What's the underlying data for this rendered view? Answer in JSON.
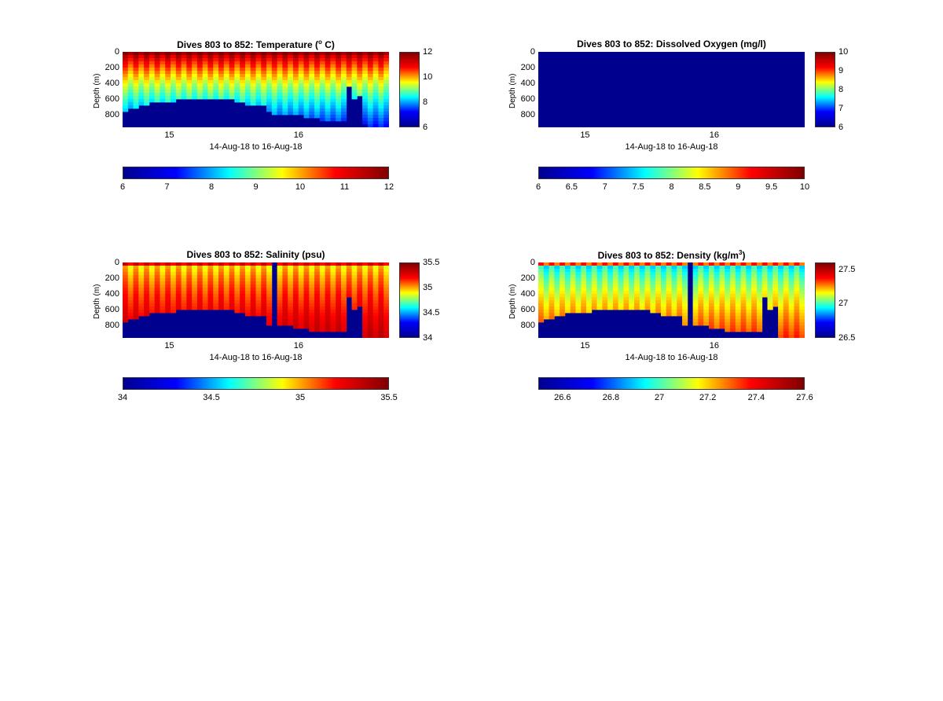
{
  "figure": {
    "colormap": [
      "#00008f",
      "#0000ff",
      "#00ffff",
      "#ffff00",
      "#ff0000",
      "#800000"
    ],
    "seafloor_color": "#00008f"
  },
  "chart_data": [
    {
      "type": "heatmap",
      "id": "temperature",
      "title": "Dives 803 to 852: Temperature (",
      "title_sup": "o",
      "title_tail": " C)",
      "ylabel": "Depth (m)",
      "xlabel": "14-Aug-18 to 16-Aug-18",
      "xticks": [
        "15",
        "16"
      ],
      "yticks": [
        "0",
        "200",
        "400",
        "600",
        "800"
      ],
      "ylim": [
        0,
        960
      ],
      "clim": [
        6,
        12
      ],
      "side_colorbar_ticks": [
        "12",
        "10",
        "8",
        "6"
      ],
      "bottom_colorbar_ticks": [
        "6",
        "7",
        "8",
        "9",
        "10",
        "11",
        "12"
      ],
      "n_dives": 50,
      "surface_value": 11.8,
      "deep_value": 7.2,
      "bottom_depths": [
        740,
        720,
        700,
        680,
        670,
        650,
        650,
        640,
        630,
        620,
        610,
        600,
        600,
        600,
        600,
        600,
        600,
        600,
        600,
        600,
        600,
        620,
        650,
        680,
        690,
        690,
        690,
        760,
        780,
        780,
        780,
        780,
        800,
        810,
        830,
        850,
        850,
        860,
        870,
        880,
        880,
        880,
        430,
        600,
        550,
        900,
        940,
        960,
        960,
        960
      ]
    },
    {
      "type": "heatmap",
      "id": "oxygen",
      "title": "Dives 803 to 852: Dissolved Oxygen (mg/l)",
      "title_sup": "",
      "title_tail": "",
      "ylabel": "Depth (m)",
      "xlabel": "14-Aug-18 to 16-Aug-18",
      "xticks": [
        "15",
        "16"
      ],
      "yticks": [
        "0",
        "200",
        "400",
        "600",
        "800"
      ],
      "ylim": [
        0,
        960
      ],
      "clim": [
        6,
        10
      ],
      "side_colorbar_ticks": [
        "10",
        "9",
        "8",
        "7",
        "6"
      ],
      "bottom_colorbar_ticks": [
        "6",
        "6.5",
        "7",
        "7.5",
        "8",
        "8.5",
        "9",
        "9.5",
        "10"
      ],
      "n_dives": 50,
      "surface_value": 6,
      "deep_value": 6,
      "bottom_depths": []
    },
    {
      "type": "heatmap",
      "id": "salinity",
      "title": "Dives 803 to 852: Salinity (psu)",
      "title_sup": "",
      "title_tail": "",
      "ylabel": "Depth (m)",
      "xlabel": "14-Aug-18 to 16-Aug-18",
      "xticks": [
        "15",
        "16"
      ],
      "yticks": [
        "0",
        "200",
        "400",
        "600",
        "800"
      ],
      "ylim": [
        0,
        960
      ],
      "clim": [
        34,
        35.5
      ],
      "side_colorbar_ticks": [
        "35.5",
        "35",
        "34.5",
        "34"
      ],
      "bottom_colorbar_ticks": [
        "34",
        "34.5",
        "35",
        "35.5"
      ],
      "n_dives": 50,
      "surface_value": 34.9,
      "deep_value": 35.35,
      "bottom_depths": [
        740,
        720,
        700,
        680,
        670,
        650,
        650,
        640,
        630,
        620,
        610,
        600,
        600,
        600,
        600,
        600,
        600,
        600,
        600,
        600,
        600,
        620,
        650,
        680,
        690,
        690,
        690,
        790,
        0,
        790,
        800,
        810,
        820,
        830,
        840,
        860,
        860,
        870,
        880,
        880,
        880,
        880,
        430,
        600,
        550,
        940,
        960,
        960,
        960,
        960
      ]
    },
    {
      "type": "heatmap",
      "id": "density",
      "title": "Dives 803 to 852: Density (kg/m",
      "title_sup": "3",
      "title_tail": ")",
      "ylabel": "Depth (m)",
      "xlabel": "14-Aug-18 to 16-Aug-18",
      "xticks": [
        "15",
        "16"
      ],
      "yticks": [
        "0",
        "200",
        "400",
        "600",
        "800"
      ],
      "ylim": [
        0,
        960
      ],
      "clim": [
        26.5,
        27.6
      ],
      "side_colorbar_ticks": [
        "27.5",
        "27",
        "26.5"
      ],
      "bottom_colorbar_ticks": [
        "26.6",
        "26.8",
        "27",
        "27.2",
        "27.4",
        "27.6"
      ],
      "n_dives": 50,
      "surface_value": 26.9,
      "deep_value": 27.35,
      "bottom_depths": [
        740,
        720,
        700,
        680,
        670,
        650,
        650,
        640,
        630,
        620,
        610,
        600,
        600,
        600,
        600,
        600,
        600,
        600,
        600,
        600,
        600,
        620,
        650,
        680,
        690,
        690,
        690,
        790,
        0,
        790,
        800,
        810,
        820,
        830,
        840,
        860,
        860,
        870,
        880,
        880,
        880,
        880,
        430,
        600,
        550,
        940,
        960,
        960,
        960,
        960
      ]
    }
  ]
}
